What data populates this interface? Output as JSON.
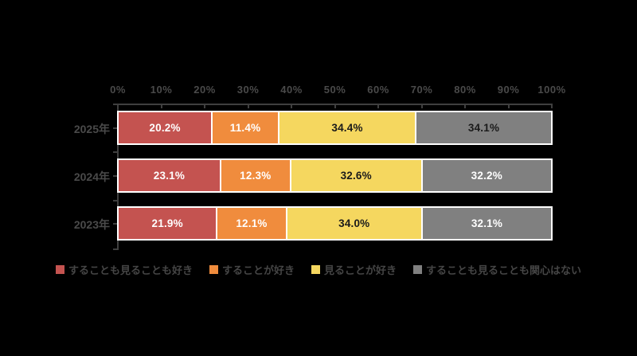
{
  "chart_data": {
    "type": "bar",
    "variant": "horizontal-stacked-100",
    "title": "",
    "xlabel": "",
    "ylabel": "",
    "xlim": [
      0,
      100
    ],
    "grid": false,
    "legend_position": "bottom",
    "x_ticks": [
      "0%",
      "10%",
      "20%",
      "30%",
      "40%",
      "50%",
      "60%",
      "70%",
      "80%",
      "90%",
      "100%"
    ],
    "categories": [
      "2025年",
      "2024年",
      "2023年"
    ],
    "series": [
      {
        "name": "することも見ることも好き",
        "color": "#c45350",
        "values": [
          20.2,
          23.1,
          21.9
        ],
        "labels": [
          "20.2%",
          "23.1%",
          "21.9%"
        ],
        "label_colors": [
          "#ffffff",
          "#ffffff",
          "#ffffff"
        ]
      },
      {
        "name": "することが好き",
        "color": "#f08c3d",
        "values": [
          11.4,
          12.3,
          12.1
        ],
        "labels": [
          "11.4%",
          "12.3%",
          "12.1%"
        ],
        "label_colors": [
          "#ffffff",
          "#ffffff",
          "#ffffff"
        ]
      },
      {
        "name": "見ることが好き",
        "color": "#f5d75f",
        "values": [
          34.4,
          32.6,
          34.0
        ],
        "labels": [
          "34.4%",
          "32.6%",
          "34.0%"
        ],
        "label_colors": [
          "#1a1a1a",
          "#1a1a1a",
          "#1a1a1a"
        ]
      },
      {
        "name": "することも見ることも関心はない",
        "color": "#808080",
        "values": [
          34.1,
          32.2,
          32.1
        ],
        "labels": [
          "34.1%",
          "32.2%",
          "32.1%"
        ],
        "label_colors": [
          "#1a1a1a",
          "#ffffff",
          "#ffffff"
        ]
      }
    ]
  },
  "colors": {
    "background": "#000000",
    "axis_line": "#3f3f3f",
    "axis_text": "#4a4a4a",
    "bar_border": "#ffffff"
  }
}
